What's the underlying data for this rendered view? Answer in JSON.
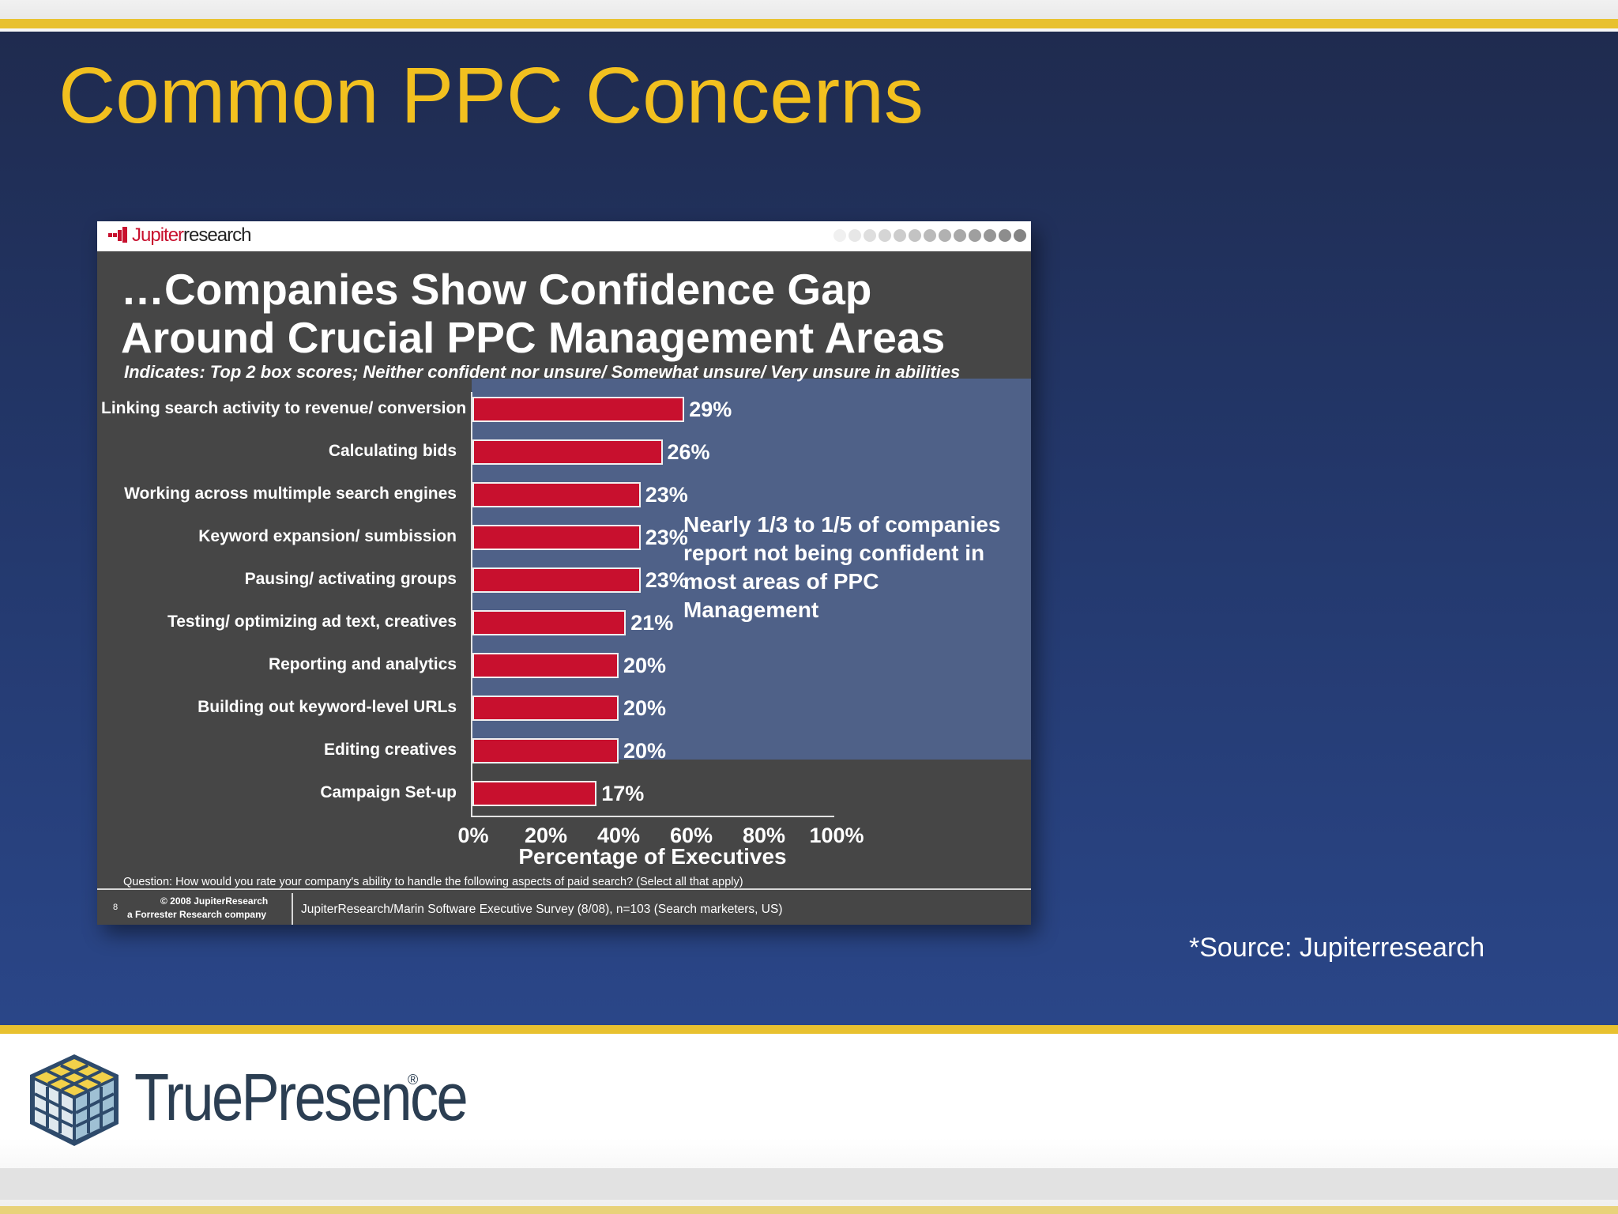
{
  "slide": {
    "title": "Common PPC Concerns",
    "source": "*Source: Jupiterresearch",
    "logo_text": "TruePresence",
    "logo_mark": "®"
  },
  "panel": {
    "logo_brand": "Jupiter",
    "logo_suffix": "research",
    "callout": "Nearly 1/3 to 1/5 of companies report not being confident in most areas of PPC Management",
    "question": "Question: How would you rate your company's ability to handle the following aspects of paid search? (Select all that apply)",
    "page_number": "8",
    "copyright_line1": "© 2008 JupiterResearch",
    "copyright_line2": "a Forrester Research company",
    "survey": "JupiterResearch/Marin Software Executive Survey (8/08), n=103 (Search marketers, US)"
  },
  "chart_data": {
    "type": "bar",
    "orientation": "horizontal",
    "title_line1": "…Companies Show Confidence Gap",
    "title_line2": "Around Crucial PPC Management Areas",
    "subtitle": "Indicates: Top 2 box scores; Neither confident nor unsure/ Somewhat unsure/ Very unsure in abilities",
    "xlabel": "Percentage of Executives",
    "ylabel": "",
    "categories": [
      "Linking search activity to revenue/ conversion",
      "Calculating bids",
      "Working across multimple search engines",
      "Keyword expansion/ sumbission",
      "Pausing/ activating groups",
      "Testing/ optimizing ad text, creatives",
      "Reporting and analytics",
      "Building out keyword-level URLs",
      "Editing creatives",
      "Campaign Set-up"
    ],
    "values": [
      29,
      26,
      23,
      23,
      23,
      21,
      20,
      20,
      20,
      17
    ],
    "value_labels": [
      "29%",
      "26%",
      "23%",
      "23%",
      "23%",
      "21%",
      "20%",
      "20%",
      "20%",
      "17%"
    ],
    "xlim": [
      0,
      100
    ],
    "x_ticks": [
      0,
      20,
      40,
      60,
      80,
      100
    ],
    "x_tick_labels": [
      "0%",
      "20%",
      "40%",
      "60%",
      "80%",
      "100%"
    ],
    "legend": "none",
    "grid": false,
    "colors": {
      "bar": "#c8102e",
      "highlight": "#4f6188",
      "panel": "#464646"
    }
  }
}
